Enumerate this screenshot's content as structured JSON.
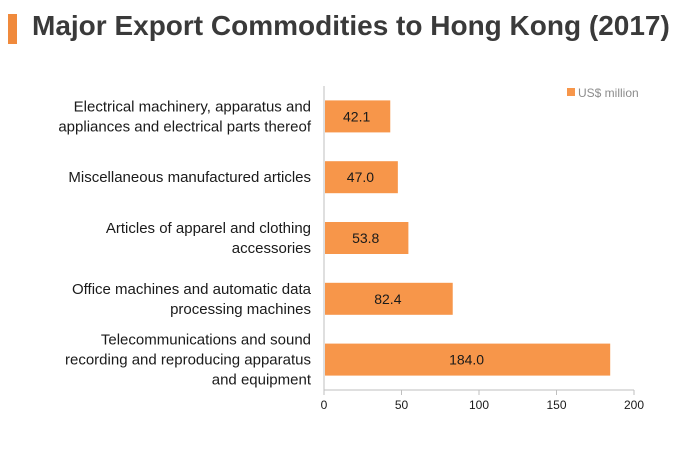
{
  "title": "Major Export Commodities to Hong Kong (2017)",
  "colors": {
    "accent": "#f08a3c",
    "bar": "#f7964a",
    "axis": "#bfbfbf"
  },
  "chart_data": {
    "type": "bar",
    "orientation": "horizontal",
    "categories": [
      [
        "Electrical machinery, apparatus and",
        "appliances and electrical parts thereof"
      ],
      [
        "Miscellaneous manufactured articles"
      ],
      [
        "Articles of apparel and clothing",
        "accessories"
      ],
      [
        "Office machines and automatic data",
        "processing machines"
      ],
      [
        "Telecommunications and sound",
        "recording and reproducing apparatus",
        "and equipment"
      ]
    ],
    "series": [
      {
        "name": "US$ million",
        "values": [
          42.1,
          47.0,
          53.8,
          82.4,
          184.0
        ],
        "labels": [
          "42.1",
          "47.0",
          "53.8",
          "82.4",
          "184.0"
        ]
      }
    ],
    "xlim": [
      0,
      200
    ],
    "xticks": [
      0,
      50,
      100,
      150,
      200
    ],
    "legend": "top-right",
    "grid": false
  }
}
